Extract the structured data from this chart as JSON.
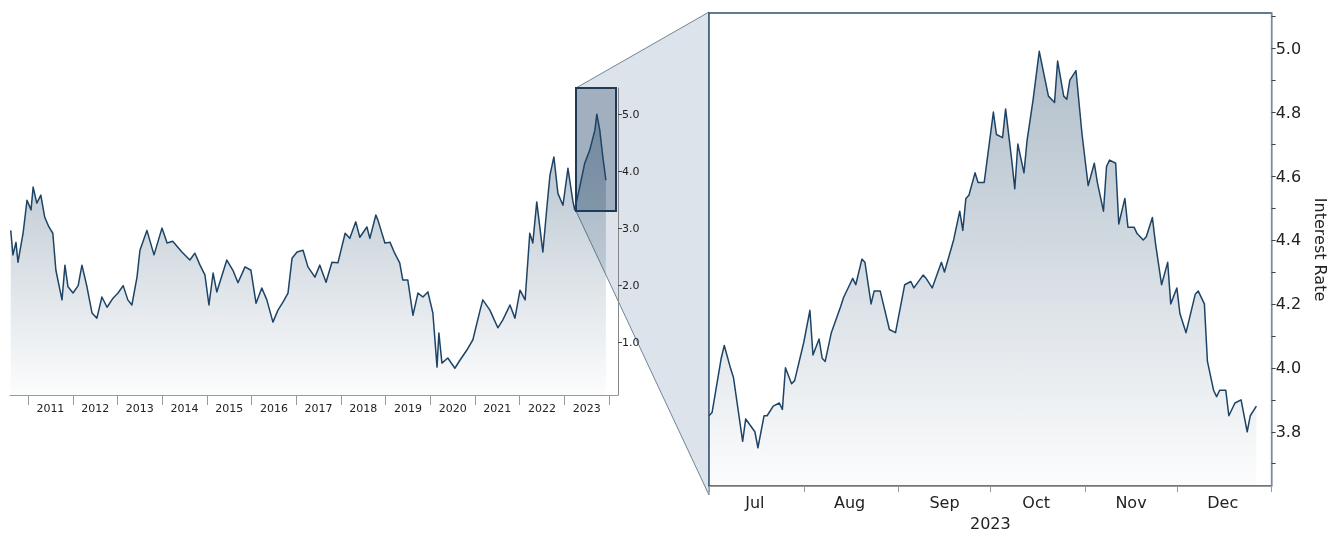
{
  "chart_data": [
    {
      "type": "area",
      "color": "#1d4466",
      "grid": false,
      "x": [
        "2010-08-12",
        "2010-08-30",
        "2010-09-24",
        "2010-10-10",
        "2010-11-21",
        "2010-12-23",
        "2011-01-25",
        "2011-02-11",
        "2011-03-13",
        "2011-04-15",
        "2011-05-17",
        "2011-06-20",
        "2011-07-22",
        "2011-08-16",
        "2011-10-05",
        "2011-10-29",
        "2011-11-23",
        "2012-01-03",
        "2012-02-14",
        "2012-03-16",
        "2012-04-26",
        "2012-06-06",
        "2012-07-16",
        "2012-08-26",
        "2012-10-07",
        "2012-11-25",
        "2013-01-05",
        "2013-02-16",
        "2013-03-26",
        "2013-04-28",
        "2013-06-09",
        "2013-07-03",
        "2013-08-29",
        "2013-10-26",
        "2013-12-30",
        "2014-02-10",
        "2014-03-28",
        "2014-06-11",
        "2014-08-15",
        "2014-09-25",
        "2014-11-06",
        "2014-12-16",
        "2015-01-18",
        "2015-02-21",
        "2015-03-23",
        "2015-06-13",
        "2015-08-02",
        "2015-09-12",
        "2015-11-09",
        "2015-12-27",
        "2016-02-07",
        "2016-03-25",
        "2016-05-05",
        "2016-06-24",
        "2016-08-04",
        "2016-09-14",
        "2016-10-25",
        "2016-11-27",
        "2017-01-07",
        "2017-02-25",
        "2017-04-06",
        "2017-06-02",
        "2017-07-12",
        "2017-09-01",
        "2017-10-19",
        "2017-12-07",
        "2018-02-04",
        "2018-03-14",
        "2018-05-02",
        "2018-06-04",
        "2018-08-01",
        "2018-08-25",
        "2018-10-13",
        "2018-10-30",
        "2018-12-26",
        "2019-02-06",
        "2019-03-16",
        "2019-04-26",
        "2019-05-21",
        "2019-07-01",
        "2019-08-12",
        "2019-09-22",
        "2019-11-02",
        "2019-12-12",
        "2020-01-22",
        "2020-02-25",
        "2020-03-11",
        "2020-04-05",
        "2020-05-23",
        "2020-07-20",
        "2020-08-30",
        "2020-10-26",
        "2020-12-14",
        "2021-02-11",
        "2021-03-05",
        "2021-05-02",
        "2021-07-06",
        "2021-08-16",
        "2021-10-13",
        "2021-11-23",
        "2022-01-03",
        "2022-02-14",
        "2022-03-24",
        "2022-04-18",
        "2022-05-20",
        "2022-07-09",
        "2022-08-11",
        "2022-09-05",
        "2022-10-07",
        "2022-11-09",
        "2022-12-20",
        "2023-01-30",
        "2023-03-10",
        "2023-03-26",
        "2023-05-06",
        "2023-06-16",
        "2023-07-27",
        "2023-09-07",
        "2023-09-23",
        "2023-10-17",
        "2023-11-11",
        "2023-12-06"
      ],
      "values": [
        2.96,
        2.53,
        2.75,
        2.4,
        2.91,
        3.49,
        3.32,
        3.72,
        3.44,
        3.58,
        3.19,
        3.02,
        2.91,
        2.26,
        1.74,
        2.35,
        1.97,
        1.86,
        1.99,
        2.35,
        1.97,
        1.51,
        1.42,
        1.79,
        1.61,
        1.77,
        1.86,
        1.99,
        1.74,
        1.65,
        2.14,
        2.61,
        2.96,
        2.53,
        3.0,
        2.74,
        2.77,
        2.58,
        2.44,
        2.56,
        2.35,
        2.18,
        1.65,
        2.21,
        1.88,
        2.44,
        2.26,
        2.04,
        2.32,
        2.26,
        1.68,
        1.95,
        1.74,
        1.35,
        1.56,
        1.7,
        1.86,
        2.47,
        2.58,
        2.61,
        2.32,
        2.14,
        2.35,
        2.05,
        2.4,
        2.39,
        2.91,
        2.82,
        3.11,
        2.84,
        3.02,
        2.82,
        3.23,
        3.14,
        2.74,
        2.75,
        2.56,
        2.39,
        2.09,
        2.09,
        1.47,
        1.86,
        1.79,
        1.88,
        1.51,
        0.56,
        1.16,
        0.63,
        0.72,
        0.54,
        0.68,
        0.86,
        1.04,
        1.56,
        1.74,
        1.56,
        1.25,
        1.39,
        1.65,
        1.42,
        1.91,
        1.74,
        2.91,
        2.74,
        3.46,
        2.58,
        3.37,
        3.93,
        4.25,
        3.61,
        3.4,
        4.05,
        3.49,
        3.32,
        3.72,
        4.14,
        4.37,
        4.72,
        5.0,
        4.72,
        4.25,
        3.84
      ],
      "xlim": [
        "2010-08-06",
        "2024-03-14"
      ],
      "xticks": [
        {
          "value": "2011-01-01",
          "label": null
        },
        {
          "value": "2011-07-02",
          "label": "2011"
        },
        {
          "value": "2012-01-01",
          "label": null
        },
        {
          "value": "2012-07-02",
          "label": "2012"
        },
        {
          "value": "2013-01-01",
          "label": null
        },
        {
          "value": "2013-07-02",
          "label": "2013"
        },
        {
          "value": "2014-01-01",
          "label": null
        },
        {
          "value": "2014-07-02",
          "label": "2014"
        },
        {
          "value": "2015-01-01",
          "label": null
        },
        {
          "value": "2015-07-02",
          "label": "2015"
        },
        {
          "value": "2016-01-01",
          "label": null
        },
        {
          "value": "2016-07-02",
          "label": "2016"
        },
        {
          "value": "2017-01-01",
          "label": null
        },
        {
          "value": "2017-07-02",
          "label": "2017"
        },
        {
          "value": "2018-01-01",
          "label": null
        },
        {
          "value": "2018-07-02",
          "label": "2018"
        },
        {
          "value": "2019-01-01",
          "label": null
        },
        {
          "value": "2019-07-02",
          "label": "2019"
        },
        {
          "value": "2020-01-01",
          "label": null
        },
        {
          "value": "2020-07-02",
          "label": "2020"
        },
        {
          "value": "2021-01-01",
          "label": null
        },
        {
          "value": "2021-07-02",
          "label": "2021"
        },
        {
          "value": "2022-01-01",
          "label": null
        },
        {
          "value": "2022-07-02",
          "label": "2022"
        },
        {
          "value": "2023-01-01",
          "label": null
        },
        {
          "value": "2023-07-02",
          "label": "2023"
        },
        {
          "value": "2024-01-01",
          "label": null
        }
      ],
      "ylim": [
        0.07,
        5.46
      ],
      "yticks": [
        {
          "value": 1,
          "label": "1.0"
        },
        {
          "value": 2,
          "label": "2.0"
        },
        {
          "value": 3,
          "label": "3.0"
        },
        {
          "value": 4,
          "label": "4.0"
        },
        {
          "value": 5,
          "label": "5.0"
        }
      ]
    },
    {
      "type": "area",
      "color": "#1d4466",
      "grid": false,
      "xlabel": "2023",
      "ylabel": "Interest Rate",
      "x": [
        "2023-07-01",
        "2023-07-02",
        "2023-07-05",
        "2023-07-06",
        "2023-07-08",
        "2023-07-09",
        "2023-07-12",
        "2023-07-13",
        "2023-07-16",
        "2023-07-17",
        "2023-07-19",
        "2023-07-20",
        "2023-07-22",
        "2023-07-24",
        "2023-07-25",
        "2023-07-26",
        "2023-07-28",
        "2023-07-29",
        "2023-08-01",
        "2023-08-03",
        "2023-08-04",
        "2023-08-06",
        "2023-08-07",
        "2023-08-08",
        "2023-08-10",
        "2023-08-13",
        "2023-08-14",
        "2023-08-16",
        "2023-08-17",
        "2023-08-18",
        "2023-08-20",
        "2023-08-21",
        "2023-08-23",
        "2023-08-24",
        "2023-08-26",
        "2023-08-27",
        "2023-08-29",
        "2023-08-31",
        "2023-09-03",
        "2023-09-05",
        "2023-09-06",
        "2023-09-09",
        "2023-09-10",
        "2023-09-12",
        "2023-09-15",
        "2023-09-16",
        "2023-09-19",
        "2023-09-21",
        "2023-09-22",
        "2023-09-23",
        "2023-09-24",
        "2023-09-26",
        "2023-09-27",
        "2023-09-29",
        "2023-10-02",
        "2023-10-03",
        "2023-10-05",
        "2023-10-06",
        "2023-10-08",
        "2023-10-09",
        "2023-10-10",
        "2023-10-12",
        "2023-10-13",
        "2023-10-15",
        "2023-10-17",
        "2023-10-20",
        "2023-10-22",
        "2023-10-23",
        "2023-10-25",
        "2023-10-26",
        "2023-10-27",
        "2023-10-29",
        "2023-10-31",
        "2023-11-02",
        "2023-11-04",
        "2023-11-05",
        "2023-11-07",
        "2023-11-08",
        "2023-11-09",
        "2023-11-11",
        "2023-11-12",
        "2023-11-14",
        "2023-11-15",
        "2023-11-17",
        "2023-11-18",
        "2023-11-20",
        "2023-11-21",
        "2023-11-23",
        "2023-11-24",
        "2023-11-26",
        "2023-11-28",
        "2023-11-29",
        "2023-12-01",
        "2023-12-02",
        "2023-12-04",
        "2023-12-07",
        "2023-12-08",
        "2023-12-10",
        "2023-12-11",
        "2023-12-13",
        "2023-12-14",
        "2023-12-15",
        "2023-12-17",
        "2023-12-18",
        "2023-12-20",
        "2023-12-22",
        "2023-12-24",
        "2023-12-25",
        "2023-12-27"
      ],
      "values": [
        3.85,
        3.86,
        4.03,
        4.07,
        4.0,
        3.97,
        3.77,
        3.84,
        3.8,
        3.75,
        3.85,
        3.85,
        3.88,
        3.89,
        3.87,
        4.0,
        3.95,
        3.96,
        4.08,
        4.18,
        4.04,
        4.09,
        4.03,
        4.02,
        4.11,
        4.19,
        4.22,
        4.26,
        4.28,
        4.26,
        4.34,
        4.33,
        4.2,
        4.24,
        4.24,
        4.2,
        4.12,
        4.11,
        4.26,
        4.27,
        4.25,
        4.29,
        4.28,
        4.25,
        4.33,
        4.3,
        4.4,
        4.49,
        4.43,
        4.53,
        4.54,
        4.61,
        4.58,
        4.58,
        4.8,
        4.73,
        4.72,
        4.81,
        4.65,
        4.56,
        4.7,
        4.61,
        4.71,
        4.84,
        4.99,
        4.85,
        4.83,
        4.96,
        4.85,
        4.84,
        4.9,
        4.93,
        4.73,
        4.57,
        4.64,
        4.58,
        4.49,
        4.63,
        4.65,
        4.64,
        4.45,
        4.53,
        4.44,
        4.44,
        4.42,
        4.4,
        4.41,
        4.47,
        4.39,
        4.26,
        4.33,
        4.2,
        4.25,
        4.17,
        4.11,
        4.23,
        4.24,
        4.2,
        4.02,
        3.93,
        3.91,
        3.93,
        3.93,
        3.85,
        3.89,
        3.9,
        3.8,
        3.85,
        3.88
      ],
      "xlim": [
        "2023-07-01",
        "2024-01-01"
      ],
      "xticks": [
        {
          "value": "2023-07-01",
          "label": null
        },
        {
          "value": "2023-07-16",
          "label": "Jul"
        },
        {
          "value": "2023-08-01",
          "label": null
        },
        {
          "value": "2023-08-16",
          "label": "Aug"
        },
        {
          "value": "2023-09-01",
          "label": null
        },
        {
          "value": "2023-09-16",
          "label": "Sep"
        },
        {
          "value": "2023-10-01",
          "label": null
        },
        {
          "value": "2023-10-16",
          "label": "Oct"
        },
        {
          "value": "2023-11-01",
          "label": null
        },
        {
          "value": "2023-11-16",
          "label": "Nov"
        },
        {
          "value": "2023-12-01",
          "label": null
        },
        {
          "value": "2023-12-16",
          "label": "Dec"
        },
        {
          "value": "2024-01-01",
          "label": null
        }
      ],
      "ylim": [
        3.63,
        5.11
      ],
      "yticks": [
        {
          "value": 3.7,
          "label": null
        },
        {
          "value": 3.8,
          "label": "3.8"
        },
        {
          "value": 3.9,
          "label": null
        },
        {
          "value": 4,
          "label": "4.0"
        },
        {
          "value": 4.1,
          "label": null
        },
        {
          "value": 4.2,
          "label": "4.2"
        },
        {
          "value": 4.3,
          "label": null
        },
        {
          "value": 4.4,
          "label": "4.4"
        },
        {
          "value": 4.5,
          "label": null
        },
        {
          "value": 4.6,
          "label": "4.6"
        },
        {
          "value": 4.7,
          "label": null
        },
        {
          "value": 4.8,
          "label": "4.8"
        },
        {
          "value": 4.9,
          "label": null
        },
        {
          "value": 5,
          "label": "5.0"
        },
        {
          "value": 5.1,
          "label": null
        }
      ]
    }
  ]
}
